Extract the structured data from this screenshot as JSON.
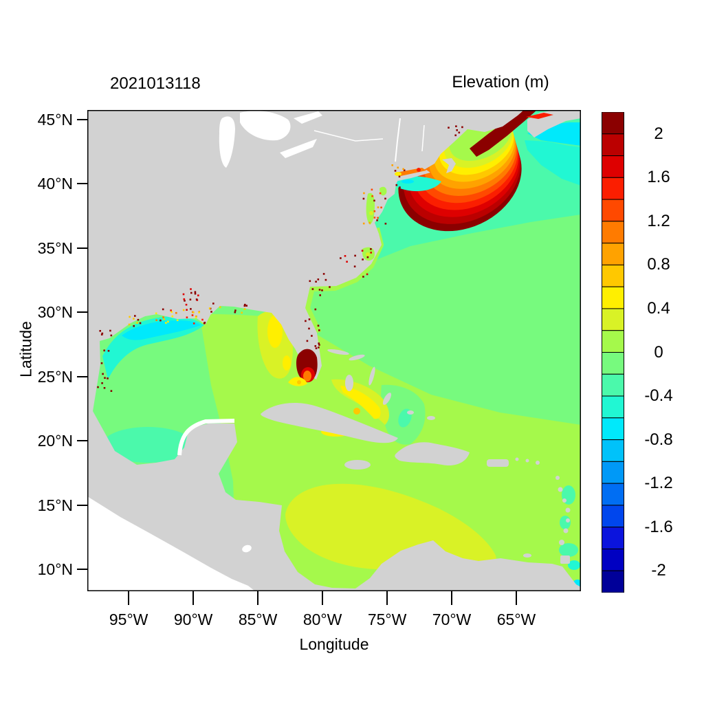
{
  "figure": {
    "title": "2021013118",
    "colorbar_title": "Elevation (m)",
    "xlabel": "Longitude",
    "ylabel": "Latitude"
  },
  "chart_data": {
    "type": "heatmap",
    "subtype": "geographic-filled-contour-map",
    "title": "2021013118",
    "colorbar_label": "Elevation (m)",
    "xlabel": "Longitude",
    "ylabel": "Latitude",
    "x_ticks": [
      {
        "value": -95,
        "label": "95°W"
      },
      {
        "value": -90,
        "label": "90°W"
      },
      {
        "value": -85,
        "label": "85°W"
      },
      {
        "value": -80,
        "label": "80°W"
      },
      {
        "value": -75,
        "label": "75°W"
      },
      {
        "value": -70,
        "label": "70°W"
      },
      {
        "value": -65,
        "label": "65°W"
      }
    ],
    "y_ticks": [
      {
        "value": 45,
        "label": "45°N"
      },
      {
        "value": 40,
        "label": "40°N"
      },
      {
        "value": 35,
        "label": "35°N"
      },
      {
        "value": 30,
        "label": "30°N"
      },
      {
        "value": 25,
        "label": "25°N"
      },
      {
        "value": 20,
        "label": "20°N"
      },
      {
        "value": 15,
        "label": "15°N"
      },
      {
        "value": 10,
        "label": "10°N"
      }
    ],
    "lon_range": [
      -98.2,
      -60.0
    ],
    "lat_range": [
      8.3,
      45.73
    ],
    "grid": false,
    "land_color": "#d2d2d2",
    "outside_domain_color": "#ffffff",
    "colorbar": {
      "position": "right",
      "min": -2.2,
      "max": 2.2,
      "cell_step": 0.2,
      "tick_labels": [
        "2",
        "1.6",
        "1.2",
        "0.8",
        "0.4",
        "0",
        "-0.4",
        "-0.8",
        "-1.2",
        "-1.6",
        "-2"
      ],
      "colors_top_to_bottom": [
        "#8b0000",
        "#bb0000",
        "#de0000",
        "#fb1e00",
        "#ff4900",
        "#ff7b00",
        "#ffa200",
        "#ffc800",
        "#ffef00",
        "#d9f226",
        "#a5f94b",
        "#77fa7e",
        "#4bf9ab",
        "#21f7d3",
        "#00e9fb",
        "#00c2fa",
        "#0099f7",
        "#006ef3",
        "#0046ed",
        "#0b14dd",
        "#0000c2",
        "#000099"
      ]
    },
    "features": [
      {
        "region": "Gulf of Maine / Bay of Fundy",
        "elevation_m": "> 2.2",
        "note": "dark-red maximum with concentric gradient rings fanning southwest past Cape Sable"
      },
      {
        "region": "Southeast Florida / Everglades",
        "elevation_m": "≈ 2 to > 2.2",
        "note": "dark-red patch with red-orange core and yellow fringe"
      },
      {
        "region": "Long Island Sound",
        "elevation_m": "0.8 to 1.4",
        "note": "orange-red streak"
      },
      {
        "region": "Louisiana marsh coast",
        "elevation_m": "0.4 to > 2",
        "note": "cluster of orange, red and dark-red cells"
      },
      {
        "region": "Texas-Louisiana shelf",
        "elevation_m": "-0.8 to -0.4",
        "note": "cyan band hugging the coast"
      },
      {
        "region": "Western Gulf of Mexico",
        "elevation_m": "-0.2 to 0"
      },
      {
        "region": "Eastern Gulf of Mexico and Bahamas banks",
        "elevation_m": "0 to 0.2"
      },
      {
        "region": "Bay of Campeche",
        "elevation_m": "-0.4 to -0.2"
      },
      {
        "region": "Atlantic north of ~36N",
        "elevation_m": "-0.4 to -0.2"
      },
      {
        "region": "Atlantic east of Nova Scotia",
        "elevation_m": "-0.8 to -0.6",
        "note": "bright cyan band"
      },
      {
        "region": "Central Atlantic band",
        "elevation_m": "-0.2 to 0"
      },
      {
        "region": "Southern Atlantic / Sargasso band",
        "elevation_m": "0 to 0.2"
      },
      {
        "region": "Central-south Caribbean",
        "elevation_m": "0.2 to 0.4",
        "note": "yellow-green lobe off Colombia/Venezuela"
      },
      {
        "region": "Coastal wetting cells",
        "elevation_m": "≈ 2+",
        "note": "scattered dark-red speckles along Gulf and US East Coast shorelines"
      }
    ]
  }
}
